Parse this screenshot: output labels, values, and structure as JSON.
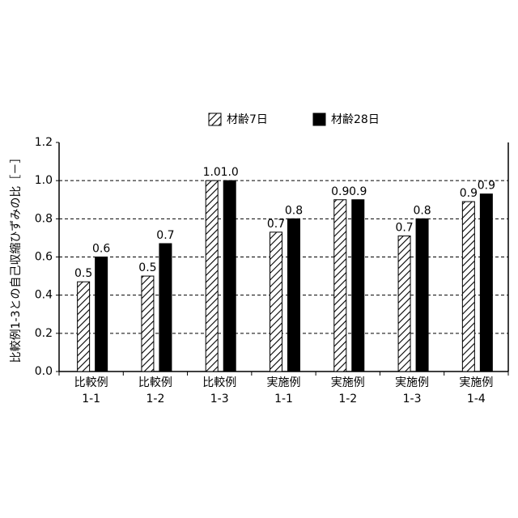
{
  "chart_data": {
    "type": "bar",
    "y_label": "比較例1-3との自己収縮ひずみの比［－］",
    "categories": [
      [
        "比較例",
        "1-1"
      ],
      [
        "比較例",
        "1-2"
      ],
      [
        "比較例",
        "1-3"
      ],
      [
        "実施例",
        "1-1"
      ],
      [
        "実施例",
        "1-2"
      ],
      [
        "実施例",
        "1-3"
      ],
      [
        "実施例",
        "1-4"
      ]
    ],
    "series": [
      {
        "name": "材齢7日",
        "color": "#000000",
        "hatch": true,
        "values": [
          0.47,
          0.5,
          1.0,
          0.73,
          0.9,
          0.71,
          0.89
        ],
        "value_labels": [
          "0.5",
          "0.5",
          "1.0",
          "0.7",
          "0.9",
          "0.7",
          "0.9"
        ]
      },
      {
        "name": "材齢28日",
        "color": "#000000",
        "hatch": false,
        "values": [
          0.6,
          0.67,
          1.0,
          0.8,
          0.9,
          0.8,
          0.93
        ],
        "value_labels": [
          "0.6",
          "0.7",
          "1.0",
          "0.8",
          "0.9",
          "0.8",
          "0.9"
        ]
      }
    ],
    "ylim": [
      0,
      1.2
    ],
    "yticks": [
      {
        "value": 0,
        "label": "0.0"
      },
      0.2,
      0.4,
      0.6,
      0.8,
      {
        "value": 1,
        "label": "1.0"
      },
      1.2
    ],
    "grid": true,
    "legend": "top"
  }
}
